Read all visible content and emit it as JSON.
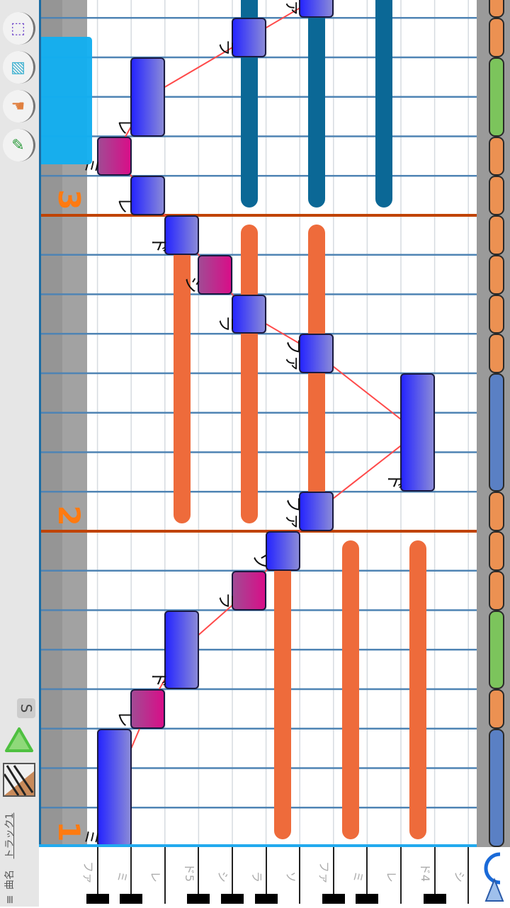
{
  "toolbar": {
    "tools": [
      {
        "name": "select-rect-icon",
        "glyph": "⬚",
        "color": "#6a3fc8"
      },
      {
        "name": "eraser-icon",
        "glyph": "▧",
        "color": "#3ab0d0"
      },
      {
        "name": "hand-icon",
        "glyph": "☚",
        "color": "#e08040"
      },
      {
        "name": "pencil-icon",
        "glyph": "✎",
        "color": "#2a9a3a"
      }
    ],
    "solo_label": "S",
    "play_icon": "triangle-icon",
    "instrument_icon": "piano-icon",
    "song_label": "曲名",
    "track_label": "トラック1",
    "menu_icon": "≡"
  },
  "bar_numbers": [
    "1",
    "2",
    "3"
  ],
  "keyboard": {
    "labels": [
      "ファ",
      "ミ",
      "レ",
      "ド5",
      "シ",
      "ラ",
      "ソ",
      "ファ",
      "ミ",
      "レ",
      "ド4",
      "シ"
    ]
  },
  "notes": [
    {
      "label": "ミ",
      "pitch": 1,
      "onset": 0,
      "length": 3,
      "accent": false
    },
    {
      "label": "レ",
      "pitch": 2,
      "onset": 3,
      "length": 1,
      "accent": true
    },
    {
      "label": "ド",
      "pitch": 3,
      "onset": 4,
      "length": 2,
      "accent": false
    },
    {
      "label": "ラ",
      "pitch": 5,
      "onset": 6,
      "length": 1,
      "accent": true
    },
    {
      "label": "ソ",
      "pitch": 6,
      "onset": 7,
      "length": 1,
      "accent": false
    },
    {
      "label": "ファ",
      "pitch": 7,
      "onset": 8,
      "length": 1,
      "accent": false
    },
    {
      "label": "ド",
      "pitch": 10,
      "onset": 9,
      "length": 3,
      "accent": false
    },
    {
      "label": "ファ",
      "pitch": 7,
      "onset": 12,
      "length": 1,
      "accent": false
    },
    {
      "label": "ラ",
      "pitch": 5,
      "onset": 13,
      "length": 1,
      "accent": false
    },
    {
      "label": "シ",
      "pitch": 4,
      "onset": 14,
      "length": 1,
      "accent": true
    },
    {
      "label": "ド",
      "pitch": 3,
      "onset": 15,
      "length": 1,
      "accent": false
    },
    {
      "label": "レ",
      "pitch": 2,
      "onset": 16,
      "length": 1,
      "accent": false
    },
    {
      "label": "ミ",
      "pitch": 1,
      "onset": 17,
      "length": 1,
      "accent": true
    },
    {
      "label": "レ",
      "pitch": 2,
      "onset": 18,
      "length": 2,
      "accent": false
    },
    {
      "label": "ラ",
      "pitch": 5,
      "onset": 20,
      "length": 1,
      "accent": false
    },
    {
      "label": "ファ",
      "pitch": 7,
      "onset": 21,
      "length": 1,
      "accent": false
    }
  ],
  "chords": [
    {
      "bar": 1,
      "pitches": [
        6,
        8,
        10
      ],
      "color": "#ee6b3b"
    },
    {
      "bar": 2,
      "pitches": [
        3,
        5,
        7
      ],
      "color": "#ee6b3b"
    },
    {
      "bar": 3,
      "pitches": [
        5,
        7,
        9
      ],
      "color": "#0b6896"
    }
  ],
  "colors": {
    "melody_line": "#ff4a4a",
    "bar_line": "#c04300",
    "selection": "#13aef0",
    "length_colors": {
      "1": "#ec9152",
      "2": "#7cc45c",
      "3": "#5a80c4"
    }
  }
}
